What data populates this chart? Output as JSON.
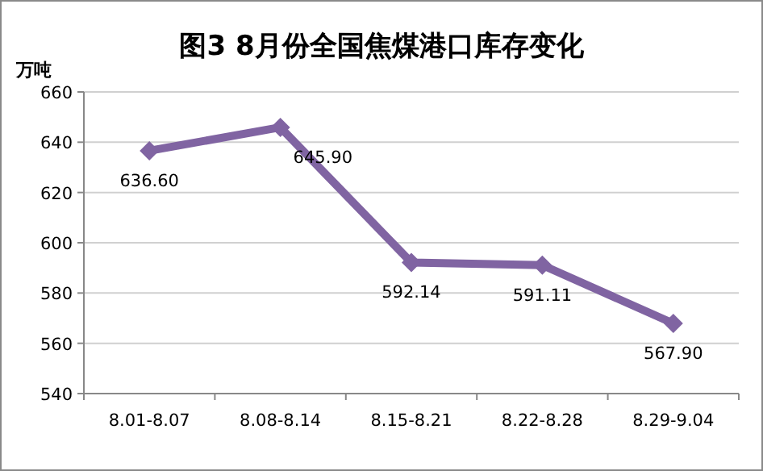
{
  "chart_data": {
    "type": "line",
    "title": "图3 8月份全国焦煤港口库存变化",
    "ylabel": "万吨",
    "categories": [
      "8.01-8.07",
      "8.08-8.14",
      "8.15-8.21",
      "8.22-8.28",
      "8.29-9.04"
    ],
    "series": [
      {
        "color": "#8064a2",
        "values": [
          636.6,
          645.9,
          592.14,
          591.11,
          567.9
        ],
        "value_labels": [
          "636.60",
          "645.90",
          "592.14",
          "591.11",
          "567.90"
        ]
      }
    ],
    "ylim": [
      540,
      660
    ],
    "yticks": [
      540,
      560,
      580,
      600,
      620,
      640,
      660
    ],
    "grid": "y",
    "marker": "diamond",
    "line_style": "solid"
  }
}
